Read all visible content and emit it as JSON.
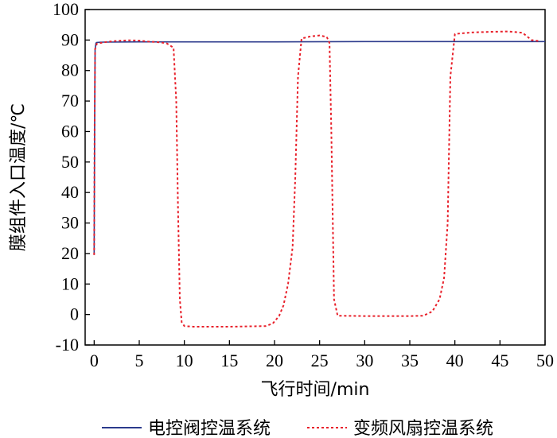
{
  "chart_data": {
    "type": "line",
    "xlabel": "飞行时间/min",
    "ylabel": "膜组件入口温度/℃",
    "xlim": [
      -1,
      50
    ],
    "ylim": [
      -10,
      100
    ],
    "xticks": [
      0,
      5,
      10,
      15,
      20,
      25,
      30,
      35,
      40,
      45,
      50
    ],
    "yticks": [
      -10,
      0,
      10,
      20,
      30,
      40,
      50,
      60,
      70,
      80,
      90,
      100
    ],
    "grid": false,
    "legend_position": "bottom",
    "series": [
      {
        "name": "电控阀控温系统",
        "color": "#2b3a8c",
        "style": "solid",
        "x": [
          0,
          0.05,
          0.1,
          0.2,
          0.3,
          1,
          5,
          10,
          20,
          30,
          40,
          50
        ],
        "y": [
          19.5,
          60,
          87,
          89,
          89.2,
          89.3,
          89.4,
          89.4,
          89.4,
          89.5,
          89.5,
          89.5
        ]
      },
      {
        "name": "变频风扇控温系统",
        "color": "#e8202a",
        "style": "dotted",
        "x": [
          0,
          0.05,
          0.1,
          0.3,
          1,
          2,
          3,
          4,
          5,
          6,
          7,
          8,
          8.8,
          9.1,
          9.3,
          9.5,
          9.7,
          10,
          11,
          15,
          19,
          19.8,
          20.5,
          21,
          21.5,
          22,
          22.3,
          22.6,
          23,
          24,
          25,
          25.8,
          26.1,
          26.3,
          26.6,
          27,
          30,
          35,
          36.5,
          37.5,
          38.3,
          38.8,
          39.2,
          39.5,
          40,
          42,
          44,
          46,
          47.5,
          48.5,
          49.5
        ],
        "y": [
          19.5,
          60,
          87,
          88.8,
          89.2,
          89.6,
          89.8,
          89.9,
          89.8,
          89.5,
          89.3,
          89.0,
          87.5,
          70,
          35,
          5,
          -2.5,
          -3.8,
          -4,
          -4,
          -3.8,
          -3.0,
          -0.5,
          3,
          10,
          22,
          45,
          78,
          90.5,
          91.2,
          91.5,
          91,
          89,
          60,
          5,
          -0.4,
          -0.5,
          -0.5,
          -0.4,
          1,
          5,
          12,
          30,
          78,
          92,
          92.5,
          92.7,
          92.8,
          92.4,
          90,
          89.6
        ]
      }
    ]
  }
}
